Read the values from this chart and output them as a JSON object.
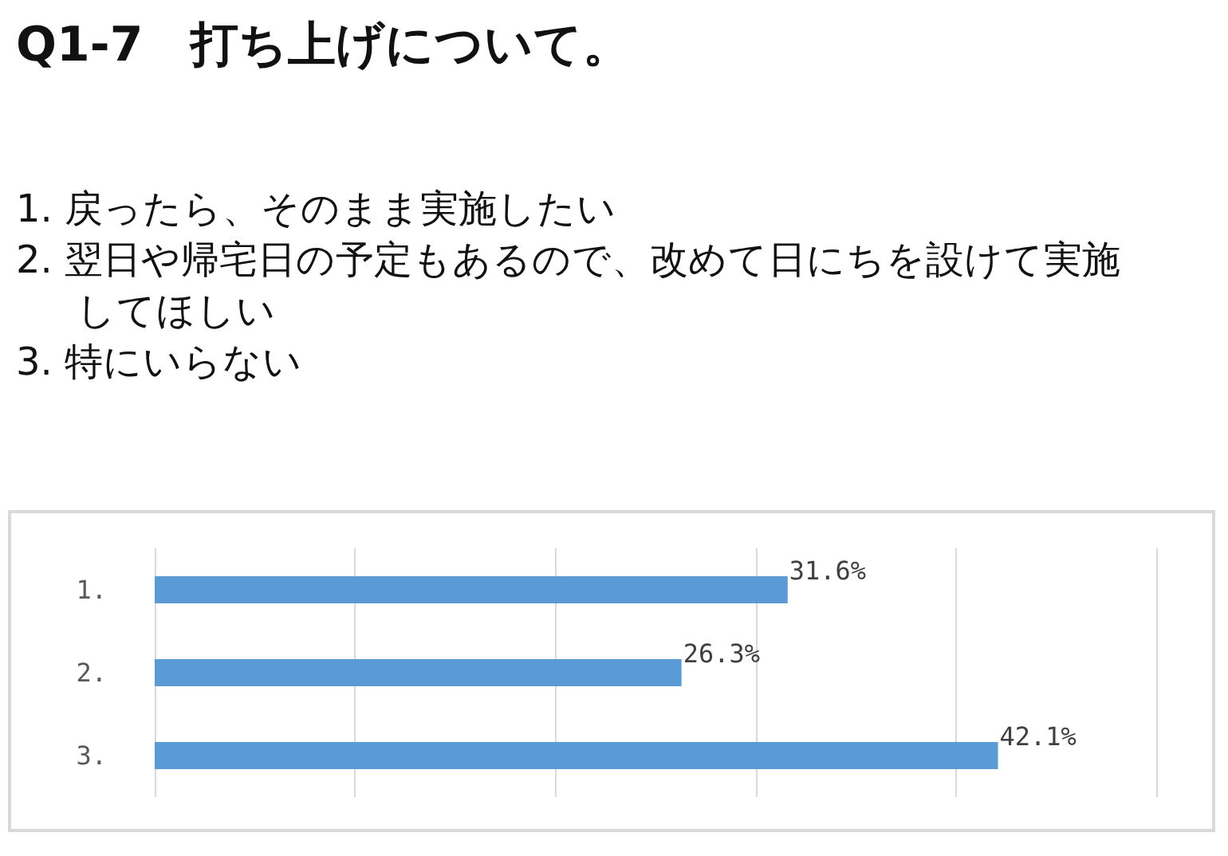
{
  "chart_data": {
    "type": "bar",
    "orientation": "horizontal",
    "title": "Q1-7　打ち上げについて。",
    "annotations": [
      "1. 戻ったら、そのまま実施したい",
      "2. 翌日や帰宅日の予定もあるので、改めて日にちを設けて実施してほしい",
      "3. 特にいらない"
    ],
    "categories": [
      "1.",
      "2.",
      "3."
    ],
    "values": [
      31.6,
      26.3,
      42.1
    ],
    "value_labels": [
      "31.6%",
      "26.3%",
      "42.1%"
    ],
    "color": "#5b9bd5",
    "xlim": [
      0,
      50
    ],
    "xticks": [
      {
        "value": 0,
        "label": null
      },
      {
        "value": 10,
        "label": null
      },
      {
        "value": 20,
        "label": null
      },
      {
        "value": 30,
        "label": null
      },
      {
        "value": 40,
        "label": null
      },
      {
        "value": 50,
        "label": null
      }
    ],
    "grid": "x"
  }
}
